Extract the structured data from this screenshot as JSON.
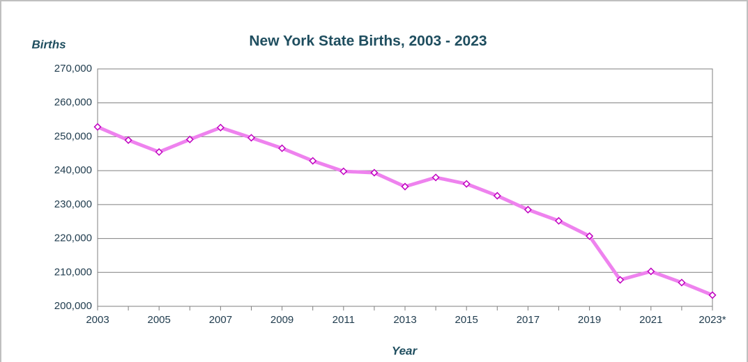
{
  "chart_data": {
    "type": "line",
    "title": "New York State Births, 2003 - 2023",
    "y_label": "Births",
    "x_label": "Year",
    "categories": [
      "2003",
      null,
      "2005",
      null,
      "2007",
      null,
      "2009",
      null,
      "2011",
      null,
      "2013",
      null,
      "2015",
      null,
      "2017",
      null,
      "2019",
      null,
      "2021",
      null,
      "2023*"
    ],
    "series": [
      {
        "name": "Births",
        "color": "#ee82ee",
        "marker_color": "#c000c0",
        "values": [
          252900,
          249000,
          245500,
          249200,
          252700,
          249700,
          246600,
          242900,
          239800,
          239400,
          235300,
          238000,
          236100,
          232600,
          228500,
          225200,
          220700,
          207800,
          210300,
          207000,
          203300
        ]
      }
    ],
    "ylim": [
      200000,
      270000
    ],
    "yticks": [
      {
        "value": 200000,
        "label": "200,000"
      },
      {
        "value": 210000,
        "label": "210,000"
      },
      {
        "value": 220000,
        "label": "220,000"
      },
      {
        "value": 230000,
        "label": "230,000"
      },
      {
        "value": 240000,
        "label": "240,000"
      },
      {
        "value": 250000,
        "label": "250,000"
      },
      {
        "value": 260000,
        "label": "260,000"
      },
      {
        "value": 270000,
        "label": "270,000"
      }
    ],
    "grid": true
  }
}
